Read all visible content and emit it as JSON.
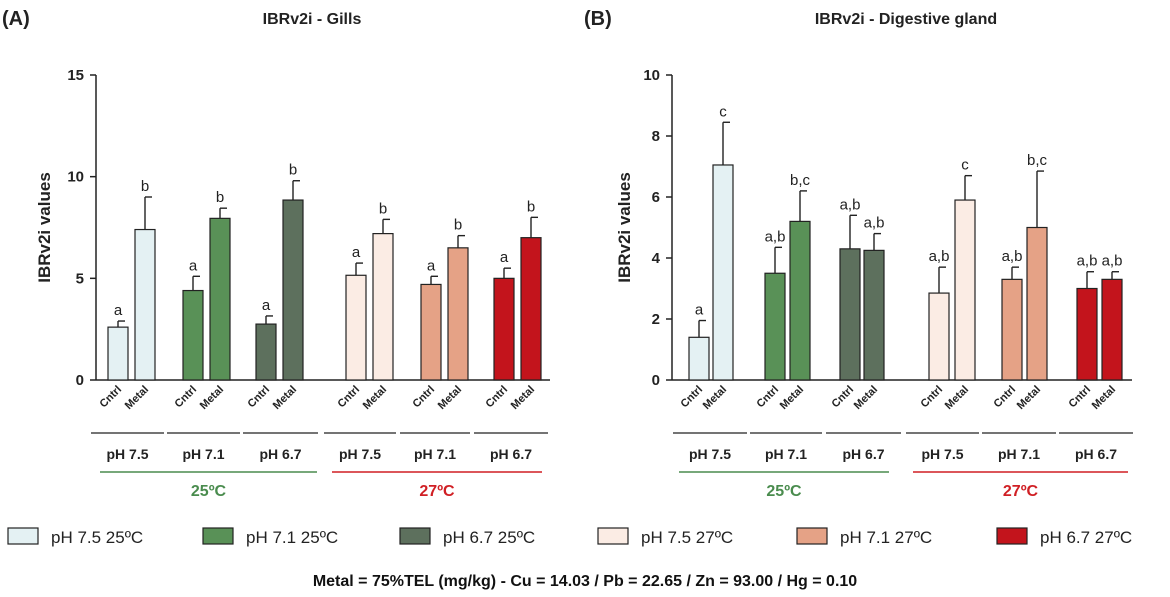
{
  "chart_data": [
    {
      "type": "bar",
      "panel_label": "(A)",
      "title": "IBRv2i - Gills",
      "ylabel": "IBRv2i values",
      "ylim": [
        0,
        15
      ],
      "yticks": [
        "0",
        "5",
        "10",
        "15"
      ],
      "bar_labels": [
        "Cntrl",
        "Metal"
      ],
      "groups": [
        {
          "ph": "pH 7.5",
          "series": "pH 7.5 25ºC",
          "bars": [
            {
              "label": "Cntrl",
              "value": 2.6,
              "error": 0.3,
              "letter": "a"
            },
            {
              "label": "Metal",
              "value": 7.4,
              "error": 1.6,
              "letter": "b"
            }
          ]
        },
        {
          "ph": "pH 7.1",
          "series": "pH 7.1 25ºC",
          "bars": [
            {
              "label": "Cntrl",
              "value": 4.4,
              "error": 0.7,
              "letter": "a"
            },
            {
              "label": "Metal",
              "value": 7.95,
              "error": 0.5,
              "letter": "b"
            }
          ]
        },
        {
          "ph": "pH 6.7",
          "series": "pH 6.7 25ºC",
          "bars": [
            {
              "label": "Cntrl",
              "value": 2.75,
              "error": 0.4,
              "letter": "a"
            },
            {
              "label": "Metal",
              "value": 8.85,
              "error": 0.95,
              "letter": "b"
            }
          ]
        },
        {
          "ph": "pH 7.5",
          "series": "pH 7.5 27ºC",
          "bars": [
            {
              "label": "Cntrl",
              "value": 5.15,
              "error": 0.6,
              "letter": "a"
            },
            {
              "label": "Metal",
              "value": 7.2,
              "error": 0.7,
              "letter": "b"
            }
          ]
        },
        {
          "ph": "pH 7.1",
          "series": "pH 7.1 27ºC",
          "bars": [
            {
              "label": "Cntrl",
              "value": 4.7,
              "error": 0.4,
              "letter": "a"
            },
            {
              "label": "Metal",
              "value": 6.5,
              "error": 0.6,
              "letter": "b"
            }
          ]
        },
        {
          "ph": "pH 6.7",
          "series": "pH 6.7 27ºC",
          "bars": [
            {
              "label": "Cntrl",
              "value": 5.0,
              "error": 0.5,
              "letter": "a"
            },
            {
              "label": "Metal",
              "value": 7.0,
              "error": 1.0,
              "letter": "b"
            }
          ]
        }
      ],
      "temperature_groups": [
        "25ºC",
        "27ºC"
      ]
    },
    {
      "type": "bar",
      "panel_label": "(B)",
      "title": "IBRv2i - Digestive gland",
      "ylabel": "IBRv2i values",
      "ylim": [
        0,
        10
      ],
      "yticks": [
        "0",
        "2",
        "4",
        "6",
        "8",
        "10"
      ],
      "bar_labels": [
        "Cntrl",
        "Metal"
      ],
      "groups": [
        {
          "ph": "pH 7.5",
          "series": "pH 7.5 25ºC",
          "bars": [
            {
              "label": "Cntrl",
              "value": 1.4,
              "error": 0.55,
              "letter": "a"
            },
            {
              "label": "Metal",
              "value": 7.05,
              "error": 1.4,
              "letter": "c"
            }
          ]
        },
        {
          "ph": "pH 7.1",
          "series": "pH 7.1 25ºC",
          "bars": [
            {
              "label": "Cntrl",
              "value": 3.5,
              "error": 0.85,
              "letter": "a,b"
            },
            {
              "label": "Metal",
              "value": 5.2,
              "error": 1.0,
              "letter": "b,c"
            }
          ]
        },
        {
          "ph": "pH 6.7",
          "series": "pH 6.7 25ºC",
          "bars": [
            {
              "label": "Cntrl",
              "value": 4.3,
              "error": 1.1,
              "letter": "a,b"
            },
            {
              "label": "Metal",
              "value": 4.25,
              "error": 0.55,
              "letter": "a,b"
            }
          ]
        },
        {
          "ph": "pH 7.5",
          "series": "pH 7.5 27ºC",
          "bars": [
            {
              "label": "Cntrl",
              "value": 2.85,
              "error": 0.85,
              "letter": "a,b"
            },
            {
              "label": "Metal",
              "value": 5.9,
              "error": 0.8,
              "letter": "c"
            }
          ]
        },
        {
          "ph": "pH 7.1",
          "series": "pH 7.1 27ºC",
          "bars": [
            {
              "label": "Cntrl",
              "value": 3.3,
              "error": 0.4,
              "letter": "a,b"
            },
            {
              "label": "Metal",
              "value": 5.0,
              "error": 1.85,
              "letter": "b,c"
            }
          ]
        },
        {
          "ph": "pH 6.7",
          "series": "pH 6.7 27ºC",
          "bars": [
            {
              "label": "Cntrl",
              "value": 3.0,
              "error": 0.55,
              "letter": "a,b"
            },
            {
              "label": "Metal",
              "value": 3.3,
              "error": 0.25,
              "letter": "a,b"
            }
          ]
        }
      ],
      "temperature_groups": [
        "25ºC",
        "27ºC"
      ]
    }
  ],
  "legend": [
    {
      "label": "pH 7.5 25ºC",
      "color": "#e4f1f3"
    },
    {
      "label": "pH 7.1 25ºC",
      "color": "#599157"
    },
    {
      "label": "pH 6.7 25ºC",
      "color": "#5d705d"
    },
    {
      "label": "pH 7.5 27ºC",
      "color": "#fbece4"
    },
    {
      "label": "pH 7.1 27ºC",
      "color": "#e5a286"
    },
    {
      "label": "pH 6.7 27ºC",
      "color": "#c3141c"
    }
  ],
  "temperature_colors": {
    "25ºC": "#4a8c4e",
    "27ºC": "#d01f24"
  },
  "footnote": "Metal = 75%TEL (mg/kg) - Cu = 14.03 / Pb = 22.65 / Zn = 93.00 / Hg = 0.10"
}
